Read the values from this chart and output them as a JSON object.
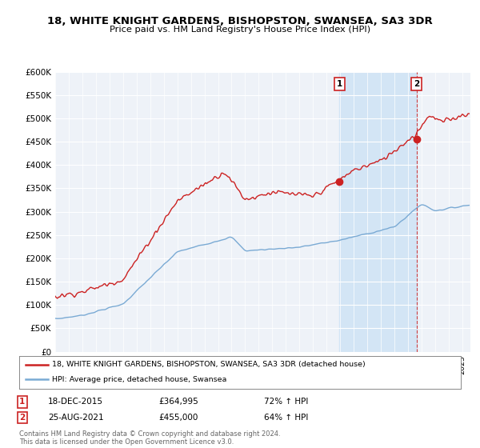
{
  "title": "18, WHITE KNIGHT GARDENS, BISHOPSTON, SWANSEA, SA3 3DR",
  "subtitle": "Price paid vs. HM Land Registry's House Price Index (HPI)",
  "legend_line1": "18, WHITE KNIGHT GARDENS, BISHOPSTON, SWANSEA, SA3 3DR (detached house)",
  "legend_line2": "HPI: Average price, detached house, Swansea",
  "annotation1_price": 364995,
  "annotation2_price": 455000,
  "footer": "Contains HM Land Registry data © Crown copyright and database right 2024.\nThis data is licensed under the Open Government Licence v3.0.",
  "hpi_color": "#7aaad4",
  "price_color": "#cc2222",
  "vline_color": "#cc2222",
  "annotation_box_color": "#cc2222",
  "shade_color": "#d0e4f5",
  "ylim": [
    0,
    600000
  ],
  "yticks": [
    0,
    50000,
    100000,
    150000,
    200000,
    250000,
    300000,
    350000,
    400000,
    450000,
    500000,
    550000,
    600000
  ],
  "background_color": "#ffffff",
  "plot_bg_color": "#eef2f8"
}
